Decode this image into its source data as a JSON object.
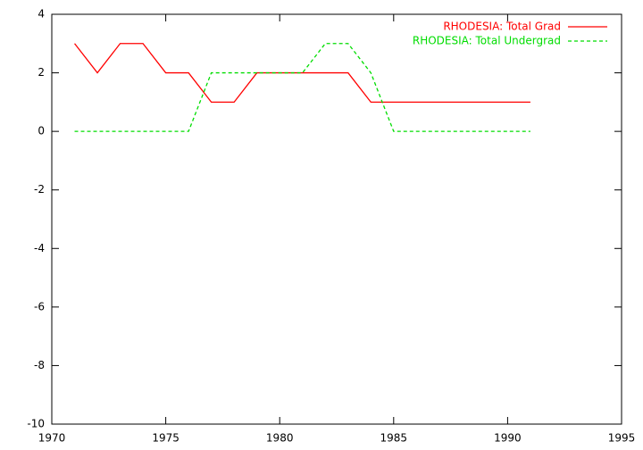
{
  "chart_data": {
    "type": "line",
    "x": [
      1971,
      1972,
      1973,
      1974,
      1975,
      1976,
      1977,
      1978,
      1979,
      1980,
      1981,
      1982,
      1983,
      1984,
      1985,
      1986,
      1987,
      1988,
      1989,
      1990,
      1991
    ],
    "series": [
      {
        "name": "RHODESIA: Total Grad",
        "color": "#ff0000",
        "dash": false,
        "values": [
          3,
          2,
          3,
          3,
          2,
          2,
          1,
          1,
          2,
          2,
          2,
          2,
          2,
          1,
          1,
          1,
          1,
          1,
          1,
          1,
          1
        ]
      },
      {
        "name": "RHODESIA: Total Undergrad",
        "color": "#00dd00",
        "dash": true,
        "values": [
          0,
          0,
          0,
          0,
          0,
          0,
          2,
          2,
          2,
          2,
          2,
          3,
          3,
          2,
          0,
          0,
          0,
          0,
          0,
          0,
          0
        ]
      }
    ],
    "xlim": [
      1970,
      1995
    ],
    "xticks": [
      1970,
      1975,
      1980,
      1985,
      1990,
      1995
    ],
    "ylim": [
      -10,
      4
    ],
    "yticks": [
      -10,
      -8,
      -6,
      -4,
      -2,
      0,
      2,
      4
    ],
    "legend": "top-right",
    "grid": false
  }
}
